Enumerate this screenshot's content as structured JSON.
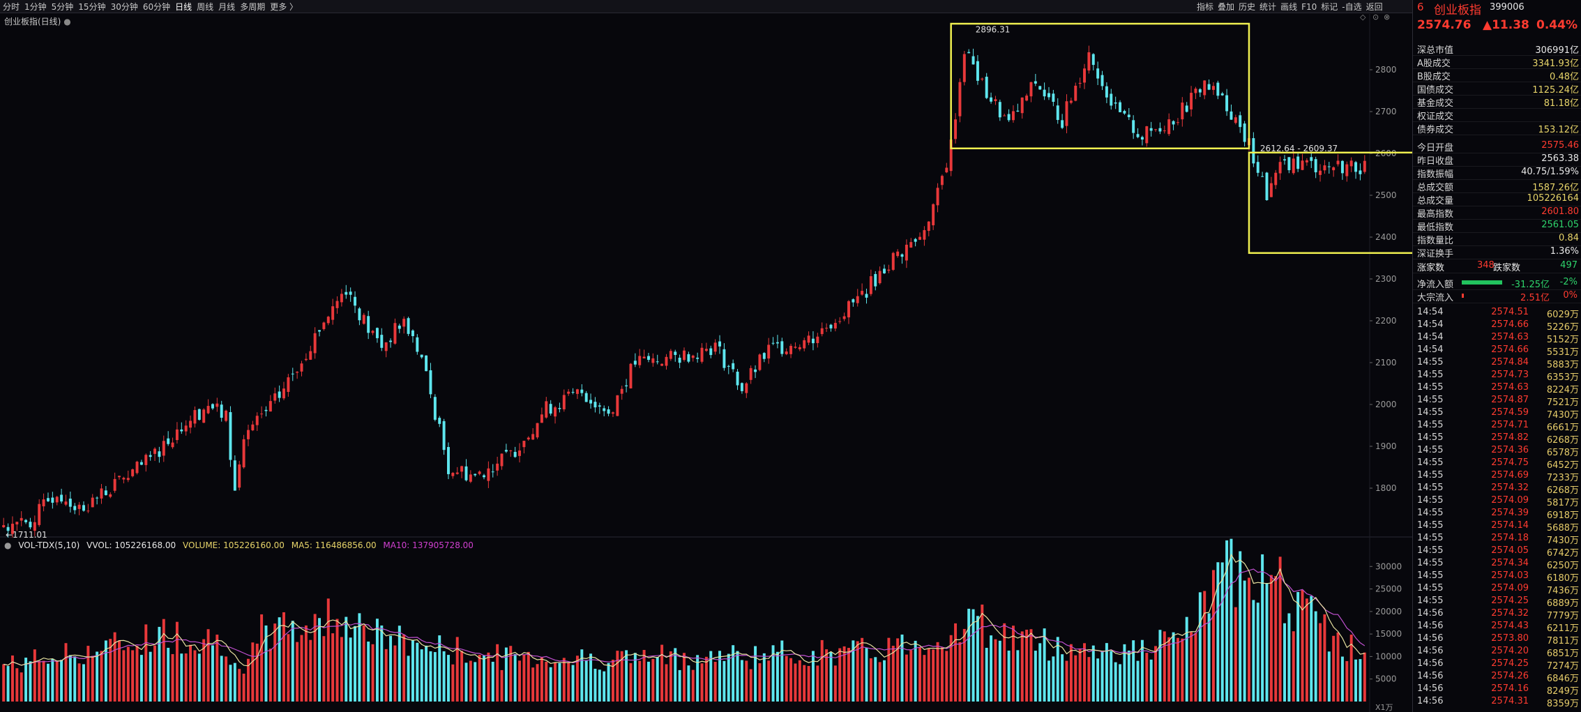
{
  "toolbar": {
    "periods": [
      "分时",
      "1分钟",
      "5分钟",
      "15分钟",
      "30分钟",
      "60分钟",
      "日线",
      "周线",
      "月线",
      "多周期",
      "更多 〉"
    ],
    "active_period": "日线",
    "tools": [
      "指标",
      "叠加",
      "历史",
      "统计",
      "画线",
      "F10",
      "标记",
      "-自选",
      "返回"
    ]
  },
  "chart_title": "创业板指(日线)",
  "annotations": {
    "high_label": "2896.31",
    "low_label": "←1711.01",
    "range_label": "2612.64 - 2609.37",
    "volume_unit": "X1万"
  },
  "vol_legend": {
    "name": "VOL-TDX(5,10)",
    "vvol": "VVOL: 105226168.00",
    "volume": "VOLUME: 105226160.00",
    "ma5": "MA5: 116486856.00",
    "ma10": "MA10: 137905728.00"
  },
  "colors": {
    "up": "#e8383a",
    "down": "#5ee6ee",
    "ma5": "#e8e2a0",
    "ma10": "#c050d0",
    "highlight": "#f0f050",
    "background": "#07070c"
  },
  "chart_data": {
    "type": "candlestick",
    "price_axis": {
      "ticks": [
        1800,
        1900,
        2000,
        2100,
        2200,
        2300,
        2400,
        2500,
        2600,
        2700,
        2800
      ],
      "range": [
        1700,
        2920
      ]
    },
    "volume_axis": {
      "ticks": [
        5000,
        10000,
        15000,
        20000,
        25000,
        30000
      ],
      "range": [
        0,
        35000
      ]
    },
    "price_anchors": [
      [
        0,
        1712
      ],
      [
        6,
        1720
      ],
      [
        12,
        1790
      ],
      [
        17,
        1750
      ],
      [
        24,
        1800
      ],
      [
        32,
        1860
      ],
      [
        40,
        1950
      ],
      [
        46,
        2000
      ],
      [
        50,
        1970
      ],
      [
        52,
        1790
      ],
      [
        54,
        1920
      ],
      [
        62,
        2020
      ],
      [
        72,
        2200
      ],
      [
        77,
        2280
      ],
      [
        82,
        2180
      ],
      [
        85,
        2140
      ],
      [
        90,
        2200
      ],
      [
        94,
        2110
      ],
      [
        100,
        1850
      ],
      [
        106,
        1830
      ],
      [
        114,
        1880
      ],
      [
        122,
        1990
      ],
      [
        130,
        2030
      ],
      [
        136,
        1980
      ],
      [
        142,
        2100
      ],
      [
        150,
        2110
      ],
      [
        160,
        2140
      ],
      [
        166,
        2040
      ],
      [
        172,
        2130
      ],
      [
        182,
        2160
      ],
      [
        192,
        2250
      ],
      [
        200,
        2350
      ],
      [
        206,
        2400
      ],
      [
        210,
        2500
      ],
      [
        213,
        2620
      ],
      [
        216,
        2850
      ],
      [
        220,
        2760
      ],
      [
        226,
        2670
      ],
      [
        232,
        2770
      ],
      [
        238,
        2680
      ],
      [
        244,
        2840
      ],
      [
        250,
        2700
      ],
      [
        256,
        2640
      ],
      [
        264,
        2690
      ],
      [
        270,
        2770
      ],
      [
        276,
        2700
      ],
      [
        280,
        2620
      ],
      [
        284,
        2500
      ],
      [
        288,
        2580
      ],
      [
        296,
        2570
      ],
      [
        306,
        2570
      ]
    ],
    "volume_anchors": [
      [
        0,
        8000
      ],
      [
        24,
        12000
      ],
      [
        36,
        15000
      ],
      [
        50,
        13500
      ],
      [
        54,
        5000
      ],
      [
        58,
        15500
      ],
      [
        70,
        17000
      ],
      [
        76,
        20000
      ],
      [
        84,
        14500
      ],
      [
        96,
        12000
      ],
      [
        110,
        10000
      ],
      [
        130,
        9500
      ],
      [
        160,
        10000
      ],
      [
        176,
        10500
      ],
      [
        194,
        11000
      ],
      [
        210,
        14000
      ],
      [
        218,
        18000
      ],
      [
        226,
        14500
      ],
      [
        238,
        12000
      ],
      [
        256,
        11000
      ],
      [
        266,
        15000
      ],
      [
        272,
        24500
      ],
      [
        280,
        33000
      ],
      [
        290,
        22000
      ],
      [
        300,
        13000
      ],
      [
        306,
        10500
      ]
    ],
    "bars": 307
  },
  "panel": {
    "code_prefix": "6",
    "name": "创业板指",
    "code": "399006",
    "last": "2574.76",
    "change": "▲11.38",
    "pct": "0.44%",
    "stats": [
      {
        "label": "深总市值",
        "value": "306991亿",
        "cls": "white"
      },
      {
        "label": "A股成交",
        "value": "3341.93亿",
        "cls": "yellow"
      },
      {
        "label": "B股成交",
        "value": "0.48亿",
        "cls": "yellow"
      },
      {
        "label": "国债成交",
        "value": "1125.24亿",
        "cls": "yellow"
      },
      {
        "label": "基金成交",
        "value": "81.18亿",
        "cls": "yellow"
      },
      {
        "label": "权证成交",
        "value": "",
        "cls": "yellow"
      },
      {
        "label": "债券成交",
        "value": "153.12亿",
        "cls": "yellow"
      },
      {
        "label": "今日开盘",
        "value": "2575.46",
        "cls": "red"
      },
      {
        "label": "昨日收盘",
        "value": "2563.38",
        "cls": "white"
      },
      {
        "label": "指数振幅",
        "value": "40.75/1.59%",
        "cls": "white"
      },
      {
        "label": "总成交额",
        "value": "1587.26亿",
        "cls": "yellow"
      },
      {
        "label": "总成交量",
        "value": "105226164",
        "cls": "yellow"
      },
      {
        "label": "最高指数",
        "value": "2601.80",
        "cls": "red"
      },
      {
        "label": "最低指数",
        "value": "2561.05",
        "cls": "green"
      },
      {
        "label": "指数量比",
        "value": "0.84",
        "cls": "yellow"
      },
      {
        "label": "深证换手",
        "value": "1.36%",
        "cls": "white"
      }
    ],
    "breadth": {
      "up_label": "涨家数",
      "up": "348",
      "down_label": "跌家数",
      "down": "497"
    },
    "flows": [
      {
        "label": "净流入额",
        "value": "-31.25亿",
        "pct": "-2%",
        "cls": "green",
        "bar": 0.72,
        "barcolor": "#22c35e"
      },
      {
        "label": "大宗流入",
        "value": "2.51亿",
        "pct": "0%",
        "cls": "red",
        "bar": 0.04,
        "barcolor": "#ff3b30"
      }
    ],
    "ticks": [
      [
        "14:54",
        "2574.51",
        "6029万"
      ],
      [
        "14:54",
        "2574.66",
        "5226万"
      ],
      [
        "14:54",
        "2574.63",
        "5152万"
      ],
      [
        "14:54",
        "2574.66",
        "5531万"
      ],
      [
        "14:55",
        "2574.84",
        "5883万"
      ],
      [
        "14:55",
        "2574.73",
        "6353万"
      ],
      [
        "14:55",
        "2574.63",
        "8224万"
      ],
      [
        "14:55",
        "2574.87",
        "7521万"
      ],
      [
        "14:55",
        "2574.59",
        "7430万"
      ],
      [
        "14:55",
        "2574.71",
        "6661万"
      ],
      [
        "14:55",
        "2574.82",
        "6268万"
      ],
      [
        "14:55",
        "2574.36",
        "6578万"
      ],
      [
        "14:55",
        "2574.75",
        "6452万"
      ],
      [
        "14:55",
        "2574.69",
        "7233万"
      ],
      [
        "14:55",
        "2574.32",
        "6268万"
      ],
      [
        "14:55",
        "2574.09",
        "5817万"
      ],
      [
        "14:55",
        "2574.39",
        "6918万"
      ],
      [
        "14:55",
        "2574.14",
        "5688万"
      ],
      [
        "14:55",
        "2574.18",
        "7430万"
      ],
      [
        "14:55",
        "2574.05",
        "6742万"
      ],
      [
        "14:55",
        "2574.34",
        "6250万"
      ],
      [
        "14:55",
        "2574.03",
        "6180万"
      ],
      [
        "14:55",
        "2574.09",
        "7436万"
      ],
      [
        "14:55",
        "2574.25",
        "6889万"
      ],
      [
        "14:56",
        "2574.32",
        "7779万"
      ],
      [
        "14:56",
        "2574.43",
        "6211万"
      ],
      [
        "14:56",
        "2573.80",
        "7811万"
      ],
      [
        "14:56",
        "2574.20",
        "6851万"
      ],
      [
        "14:56",
        "2574.25",
        "7274万"
      ],
      [
        "14:56",
        "2574.26",
        "6846万"
      ],
      [
        "14:56",
        "2574.16",
        "8249万"
      ],
      [
        "14:56",
        "2574.31",
        "8359万"
      ]
    ]
  }
}
